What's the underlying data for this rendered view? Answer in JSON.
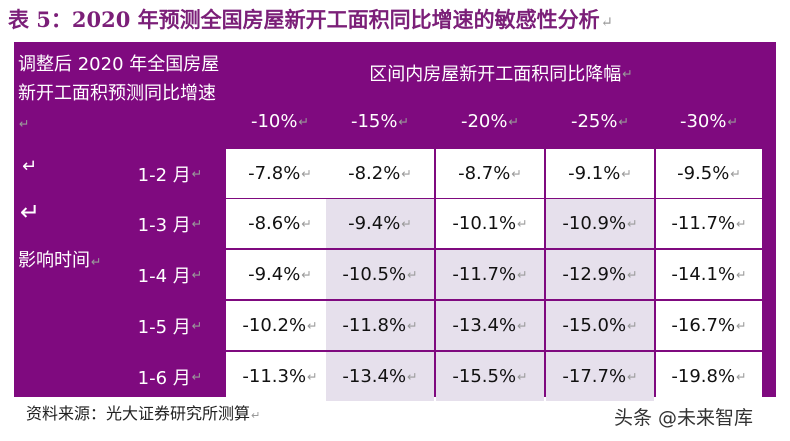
{
  "title": "表 5：2020 年预测全国房屋新开工面积同比增速的敏感性分析",
  "return_mark": "↵",
  "corner_label": "调整后 2020 年全国房屋新开工面积预测同比增速",
  "header_main": "区间内房屋新开工面积同比降幅",
  "left_label": "影响时间",
  "columns": [
    "-10%",
    "-15%",
    "-20%",
    "-25%",
    "-30%"
  ],
  "rows": [
    {
      "label": "1-2 月",
      "values": [
        "-7.8%",
        "-8.2%",
        "-8.7%",
        "-9.1%",
        "-9.5%"
      ]
    },
    {
      "label": "1-3 月",
      "values": [
        "-8.6%",
        "-9.4%",
        "-10.1%",
        "-10.9%",
        "-11.7%"
      ]
    },
    {
      "label": "1-4 月",
      "values": [
        "-9.4%",
        "-10.5%",
        "-11.7%",
        "-12.9%",
        "-14.1%"
      ]
    },
    {
      "label": "1-5 月",
      "values": [
        "-10.2%",
        "-11.8%",
        "-13.4%",
        "-15.0%",
        "-16.7%"
      ]
    },
    {
      "label": "1-6 月",
      "values": [
        "-11.3%",
        "-13.4%",
        "-15.5%",
        "-17.7%",
        "-19.8%"
      ]
    }
  ],
  "source": "资料来源：光大证券研究所测算",
  "watermark": "头条 @未来智库",
  "colors": {
    "header_bg": "#7f0a7f",
    "title": "#7b1f78",
    "shaded_cell": "#e6e0ec"
  }
}
